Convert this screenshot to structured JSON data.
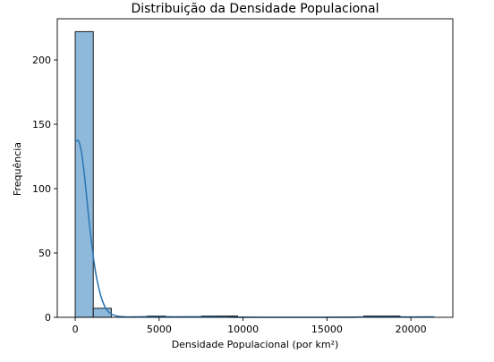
{
  "chart_data": {
    "type": "bar",
    "title": "Distribuição da Densidade Populacional",
    "xlabel": "Densidade Populacional (por km²)",
    "ylabel": "Frequência",
    "xlim": [
      -1070,
      22500
    ],
    "ylim": [
      0,
      232
    ],
    "xticks": [
      0,
      5000,
      10000,
      15000,
      20000
    ],
    "yticks": [
      0,
      50,
      100,
      150,
      200
    ],
    "grid": false,
    "histogram": {
      "bin_start": 0,
      "bin_width": 1075,
      "counts": [
        222,
        7,
        0,
        0,
        1,
        0,
        0,
        1,
        1,
        0,
        0,
        0,
        0,
        0,
        0,
        0,
        1,
        1,
        0,
        0
      ]
    },
    "kde": {
      "x": [
        0,
        200,
        400,
        600,
        800,
        1000,
        1200,
        1400,
        1600,
        1800,
        2000,
        2200,
        2500,
        3000,
        3500,
        4000,
        4500,
        5000,
        5500,
        6000,
        7000,
        8000,
        9000,
        10000,
        12000,
        14000,
        16000,
        17000,
        18000,
        19000,
        20000,
        21000,
        21400
      ],
      "y": [
        136,
        137,
        126,
        104,
        78,
        55,
        36,
        23,
        13.5,
        7.5,
        4,
        2.2,
        0.9,
        0.3,
        0.3,
        0.4,
        0.5,
        0.5,
        0.4,
        0.3,
        0.4,
        0.4,
        0.2,
        0.05,
        0,
        0,
        0.05,
        0.2,
        0.3,
        0.2,
        0.2,
        0.3,
        0.3
      ]
    },
    "colors": {
      "bar_fill": "#8fb9db",
      "bar_edge": "#1a1a1a",
      "kde_line": "#2f78b6",
      "axes": "#000000"
    }
  }
}
